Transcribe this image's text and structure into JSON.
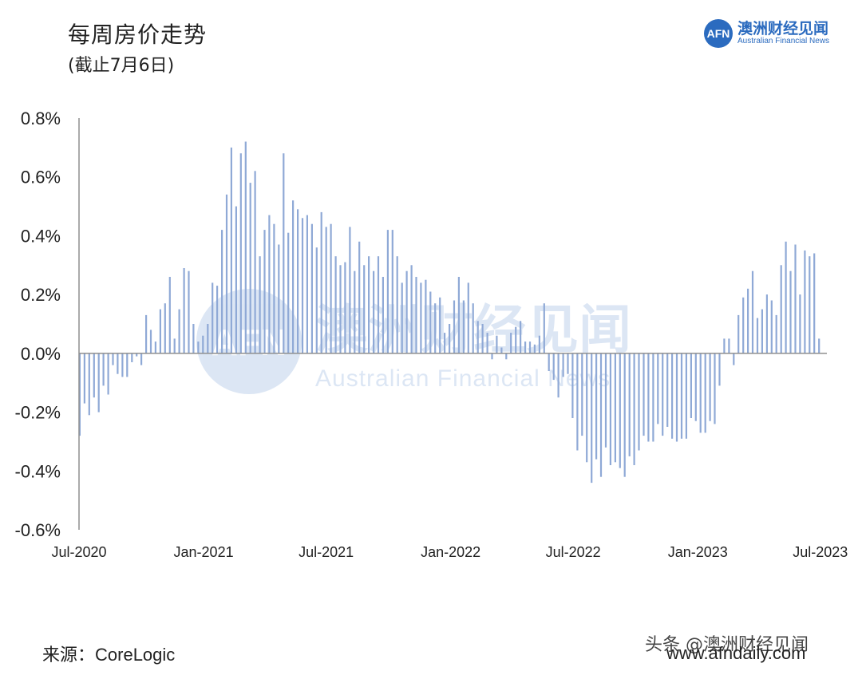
{
  "header": {
    "title": "每周房价走势",
    "subtitle": "(截止7月6日)"
  },
  "logo": {
    "mark": "AFN",
    "name_cn": "澳洲财经见闻",
    "name_en": "Australian Financial News",
    "color": "#2b6bbf"
  },
  "watermark": {
    "cn": "澳洲财经见闻",
    "en": "Australian Financial News"
  },
  "footer": {
    "source_label": "来源：",
    "source_name": "CoreLogic",
    "toutiao": "头条 @澳洲财经见闻",
    "url": "www.afndaily.com"
  },
  "chart_data": {
    "type": "bar",
    "bar_color": "#8fa9d6",
    "y_tick_labels": [
      "0.8%",
      "0.6%",
      "0.4%",
      "0.2%",
      "0.0%",
      "-0.2%",
      "-0.4%",
      "-0.6%"
    ],
    "y_ticks": [
      0.8,
      0.6,
      0.4,
      0.2,
      0.0,
      -0.2,
      -0.4,
      -0.6
    ],
    "ylim": [
      -0.6,
      0.8
    ],
    "x_tick_labels": [
      "Jul-2020",
      "Jan-2021",
      "Jul-2021",
      "Jan-2022",
      "Jul-2022",
      "Jan-2023",
      "Jul-2023"
    ],
    "x_tick_dates": [
      "2020-07-01",
      "2021-01-01",
      "2021-07-01",
      "2022-01-01",
      "2022-07-01",
      "2023-01-01",
      "2023-07-01"
    ],
    "x_range": [
      "2020-07-01",
      "2023-07-06"
    ],
    "series": [
      {
        "weeks": [
          [
            "2020-07-02",
            -0.28
          ],
          [
            "2020-07-09",
            -0.17
          ],
          [
            "2020-07-16",
            -0.21
          ],
          [
            "2020-07-23",
            -0.15
          ],
          [
            "2020-07-30",
            -0.2
          ],
          [
            "2020-08-06",
            -0.11
          ],
          [
            "2020-08-13",
            -0.14
          ],
          [
            "2020-08-20",
            -0.04
          ],
          [
            "2020-08-27",
            -0.07
          ],
          [
            "2020-09-03",
            -0.08
          ],
          [
            "2020-09-10",
            -0.08
          ],
          [
            "2020-09-17",
            -0.03
          ],
          [
            "2020-09-24",
            -0.01
          ],
          [
            "2020-10-01",
            -0.04
          ],
          [
            "2020-10-08",
            0.13
          ],
          [
            "2020-10-15",
            0.08
          ],
          [
            "2020-10-22",
            0.04
          ],
          [
            "2020-10-29",
            0.15
          ],
          [
            "2020-11-05",
            0.17
          ],
          [
            "2020-11-12",
            0.26
          ],
          [
            "2020-11-19",
            0.05
          ],
          [
            "2020-11-26",
            0.15
          ],
          [
            "2020-12-03",
            0.29
          ],
          [
            "2020-12-10",
            0.28
          ],
          [
            "2020-12-17",
            0.1
          ],
          [
            "2020-12-24",
            0.04
          ],
          [
            "2020-12-31",
            0.06
          ],
          [
            "2021-01-07",
            0.1
          ],
          [
            "2021-01-14",
            0.24
          ],
          [
            "2021-01-21",
            0.23
          ],
          [
            "2021-01-28",
            0.42
          ],
          [
            "2021-02-04",
            0.54
          ],
          [
            "2021-02-11",
            0.7
          ],
          [
            "2021-02-18",
            0.5
          ],
          [
            "2021-02-25",
            0.68
          ],
          [
            "2021-03-04",
            0.72
          ],
          [
            "2021-03-11",
            0.58
          ],
          [
            "2021-03-18",
            0.62
          ],
          [
            "2021-03-25",
            0.33
          ],
          [
            "2021-04-01",
            0.42
          ],
          [
            "2021-04-08",
            0.47
          ],
          [
            "2021-04-15",
            0.44
          ],
          [
            "2021-04-22",
            0.37
          ],
          [
            "2021-04-29",
            0.68
          ],
          [
            "2021-05-06",
            0.41
          ],
          [
            "2021-05-13",
            0.52
          ],
          [
            "2021-05-20",
            0.49
          ],
          [
            "2021-05-27",
            0.46
          ],
          [
            "2021-06-03",
            0.47
          ],
          [
            "2021-06-10",
            0.44
          ],
          [
            "2021-06-17",
            0.36
          ],
          [
            "2021-06-24",
            0.48
          ],
          [
            "2021-07-01",
            0.43
          ],
          [
            "2021-07-08",
            0.44
          ],
          [
            "2021-07-15",
            0.33
          ],
          [
            "2021-07-22",
            0.3
          ],
          [
            "2021-07-29",
            0.31
          ],
          [
            "2021-08-05",
            0.43
          ],
          [
            "2021-08-12",
            0.28
          ],
          [
            "2021-08-19",
            0.38
          ],
          [
            "2021-08-26",
            0.3
          ],
          [
            "2021-09-02",
            0.33
          ],
          [
            "2021-09-09",
            0.28
          ],
          [
            "2021-09-16",
            0.33
          ],
          [
            "2021-09-23",
            0.26
          ],
          [
            "2021-09-30",
            0.42
          ],
          [
            "2021-10-07",
            0.42
          ],
          [
            "2021-10-14",
            0.33
          ],
          [
            "2021-10-21",
            0.24
          ],
          [
            "2021-10-28",
            0.28
          ],
          [
            "2021-11-04",
            0.3
          ],
          [
            "2021-11-11",
            0.26
          ],
          [
            "2021-11-18",
            0.24
          ],
          [
            "2021-11-25",
            0.25
          ],
          [
            "2021-12-02",
            0.21
          ],
          [
            "2021-12-09",
            0.17
          ],
          [
            "2021-12-16",
            0.19
          ],
          [
            "2021-12-23",
            0.07
          ],
          [
            "2021-12-30",
            0.1
          ],
          [
            "2022-01-06",
            0.18
          ],
          [
            "2022-01-13",
            0.26
          ],
          [
            "2022-01-20",
            0.18
          ],
          [
            "2022-01-27",
            0.24
          ],
          [
            "2022-02-03",
            0.17
          ],
          [
            "2022-02-10",
            0.11
          ],
          [
            "2022-02-17",
            0.1
          ],
          [
            "2022-02-24",
            0.07
          ],
          [
            "2022-03-03",
            -0.02
          ],
          [
            "2022-03-10",
            0.06
          ],
          [
            "2022-03-17",
            0.02
          ],
          [
            "2022-03-24",
            -0.02
          ],
          [
            "2022-03-31",
            0.07
          ],
          [
            "2022-04-07",
            0.09
          ],
          [
            "2022-04-14",
            0.11
          ],
          [
            "2022-04-21",
            0.04
          ],
          [
            "2022-04-28",
            0.04
          ],
          [
            "2022-05-05",
            0.03
          ],
          [
            "2022-05-12",
            0.06
          ],
          [
            "2022-05-19",
            0.17
          ],
          [
            "2022-05-26",
            -0.06
          ],
          [
            "2022-06-02",
            -0.09
          ],
          [
            "2022-06-09",
            -0.15
          ],
          [
            "2022-06-16",
            -0.08
          ],
          [
            "2022-06-23",
            -0.07
          ],
          [
            "2022-06-30",
            -0.22
          ],
          [
            "2022-07-07",
            -0.33
          ],
          [
            "2022-07-14",
            -0.28
          ],
          [
            "2022-07-21",
            -0.37
          ],
          [
            "2022-07-28",
            -0.44
          ],
          [
            "2022-08-04",
            -0.36
          ],
          [
            "2022-08-11",
            -0.42
          ],
          [
            "2022-08-18",
            -0.32
          ],
          [
            "2022-08-25",
            -0.38
          ],
          [
            "2022-09-01",
            -0.37
          ],
          [
            "2022-09-08",
            -0.39
          ],
          [
            "2022-09-15",
            -0.42
          ],
          [
            "2022-09-22",
            -0.35
          ],
          [
            "2022-09-29",
            -0.38
          ],
          [
            "2022-10-06",
            -0.33
          ],
          [
            "2022-10-13",
            -0.28
          ],
          [
            "2022-10-20",
            -0.3
          ],
          [
            "2022-10-27",
            -0.3
          ],
          [
            "2022-11-03",
            -0.24
          ],
          [
            "2022-11-10",
            -0.28
          ],
          [
            "2022-11-17",
            -0.25
          ],
          [
            "2022-11-24",
            -0.29
          ],
          [
            "2022-12-01",
            -0.3
          ],
          [
            "2022-12-08",
            -0.29
          ],
          [
            "2022-12-15",
            -0.29
          ],
          [
            "2022-12-22",
            -0.22
          ],
          [
            "2022-12-29",
            -0.23
          ],
          [
            "2023-01-05",
            -0.27
          ],
          [
            "2023-01-12",
            -0.27
          ],
          [
            "2023-01-19",
            -0.23
          ],
          [
            "2023-01-26",
            -0.24
          ],
          [
            "2023-02-02",
            -0.11
          ],
          [
            "2023-02-09",
            0.05
          ],
          [
            "2023-02-16",
            0.05
          ],
          [
            "2023-02-23",
            -0.04
          ],
          [
            "2023-03-02",
            0.13
          ],
          [
            "2023-03-09",
            0.19
          ],
          [
            "2023-03-16",
            0.22
          ],
          [
            "2023-03-23",
            0.28
          ],
          [
            "2023-03-30",
            0.12
          ],
          [
            "2023-04-06",
            0.15
          ],
          [
            "2023-04-13",
            0.2
          ],
          [
            "2023-04-20",
            0.18
          ],
          [
            "2023-04-27",
            0.13
          ],
          [
            "2023-05-04",
            0.3
          ],
          [
            "2023-05-11",
            0.38
          ],
          [
            "2023-05-18",
            0.28
          ],
          [
            "2023-05-25",
            0.37
          ],
          [
            "2023-06-01",
            0.2
          ],
          [
            "2023-06-08",
            0.35
          ],
          [
            "2023-06-15",
            0.33
          ],
          [
            "2023-06-22",
            0.34
          ],
          [
            "2023-06-29",
            0.05
          ]
        ]
      }
    ]
  }
}
